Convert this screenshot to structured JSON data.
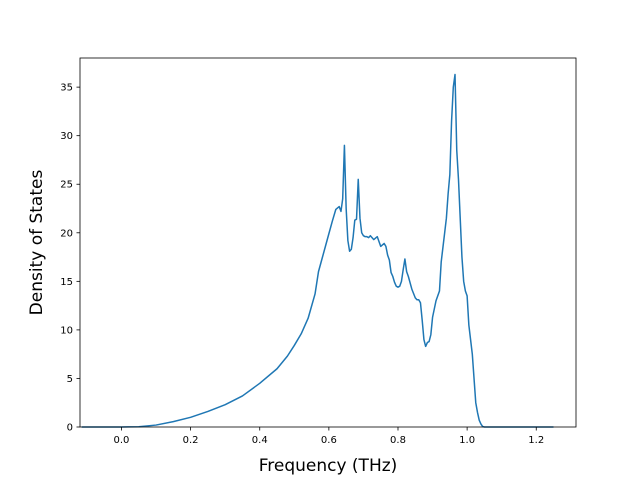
{
  "chart_data": {
    "type": "line",
    "title": "",
    "xlabel": "Frequency (THz)",
    "ylabel": "Density of States",
    "xlim": [
      -0.12,
      1.315
    ],
    "ylim": [
      0,
      38
    ],
    "x_ticks": [
      0.0,
      0.2,
      0.4,
      0.6,
      0.8,
      1.0,
      1.2
    ],
    "x_tick_labels": [
      "0.0",
      "0.2",
      "0.4",
      "0.6",
      "0.8",
      "1.0",
      "1.2"
    ],
    "y_ticks": [
      0,
      5,
      10,
      15,
      20,
      25,
      30,
      35
    ],
    "y_tick_labels": [
      "0",
      "5",
      "10",
      "15",
      "20",
      "25",
      "30",
      "35"
    ],
    "grid": false,
    "legend": "none",
    "series": [
      {
        "color": "#1f77b4",
        "x": [
          -0.115,
          0.0,
          0.05,
          0.1,
          0.15,
          0.2,
          0.25,
          0.3,
          0.35,
          0.4,
          0.45,
          0.48,
          0.5,
          0.52,
          0.54,
          0.56,
          0.57,
          0.58,
          0.59,
          0.6,
          0.61,
          0.62,
          0.63,
          0.635,
          0.64,
          0.645,
          0.65,
          0.655,
          0.66,
          0.665,
          0.67,
          0.675,
          0.68,
          0.685,
          0.69,
          0.695,
          0.7,
          0.705,
          0.71,
          0.715,
          0.72,
          0.73,
          0.74,
          0.75,
          0.76,
          0.765,
          0.77,
          0.775,
          0.78,
          0.785,
          0.79,
          0.795,
          0.8,
          0.805,
          0.81,
          0.815,
          0.82,
          0.825,
          0.83,
          0.84,
          0.85,
          0.855,
          0.86,
          0.865,
          0.87,
          0.875,
          0.88,
          0.885,
          0.89,
          0.895,
          0.9,
          0.91,
          0.92,
          0.925,
          0.93,
          0.935,
          0.94,
          0.945,
          0.95,
          0.955,
          0.96,
          0.965,
          0.97,
          0.975,
          0.98,
          0.985,
          0.99,
          0.995,
          1.0,
          1.005,
          1.01,
          1.015,
          1.02,
          1.025,
          1.03,
          1.035,
          1.04,
          1.045,
          1.05,
          1.055,
          1.06,
          1.065,
          1.07,
          1.075,
          1.08,
          1.085,
          1.09,
          1.095,
          1.1,
          1.105,
          1.11,
          1.115,
          1.12,
          1.125,
          1.13,
          1.135,
          1.14,
          1.15,
          1.2,
          1.25
        ],
        "y": [
          0.0,
          0.0,
          0.03,
          0.2,
          0.55,
          1.0,
          1.6,
          2.3,
          3.2,
          4.5,
          6.0,
          7.3,
          8.4,
          9.6,
          11.2,
          13.7,
          16.0,
          17.3,
          18.6,
          19.9,
          21.2,
          22.4,
          22.7,
          22.2,
          23.5,
          29.0,
          22.5,
          19.2,
          18.1,
          18.3,
          19.5,
          21.3,
          21.4,
          25.5,
          21.5,
          20.0,
          19.7,
          19.6,
          19.6,
          19.5,
          19.7,
          19.3,
          19.6,
          18.6,
          18.9,
          18.6,
          17.7,
          17.2,
          15.9,
          15.5,
          14.9,
          14.5,
          14.4,
          14.5,
          15.0,
          16.2,
          17.3,
          16.0,
          15.5,
          14.2,
          13.3,
          13.1,
          13.1,
          12.8,
          11.0,
          9.0,
          8.3,
          8.7,
          8.8,
          9.5,
          11.3,
          13.0,
          14.0,
          17.0,
          18.5,
          20.0,
          21.5,
          24.0,
          26.0,
          31.5,
          35.0,
          36.3,
          28.5,
          25.5,
          21.5,
          17.5,
          15.0,
          14.0,
          13.5,
          10.5,
          9.0,
          7.5,
          5.0,
          2.5,
          1.5,
          0.7,
          0.3,
          0.05,
          0.0,
          0.0,
          0.0,
          0.0,
          0.0,
          0.0,
          0.0,
          0.0,
          0.0,
          0.0,
          0.0,
          0.0,
          0.0,
          0.0,
          0.0,
          0.0,
          0.0,
          0.0,
          0.0,
          0.0,
          0.0,
          0.0
        ]
      }
    ]
  }
}
